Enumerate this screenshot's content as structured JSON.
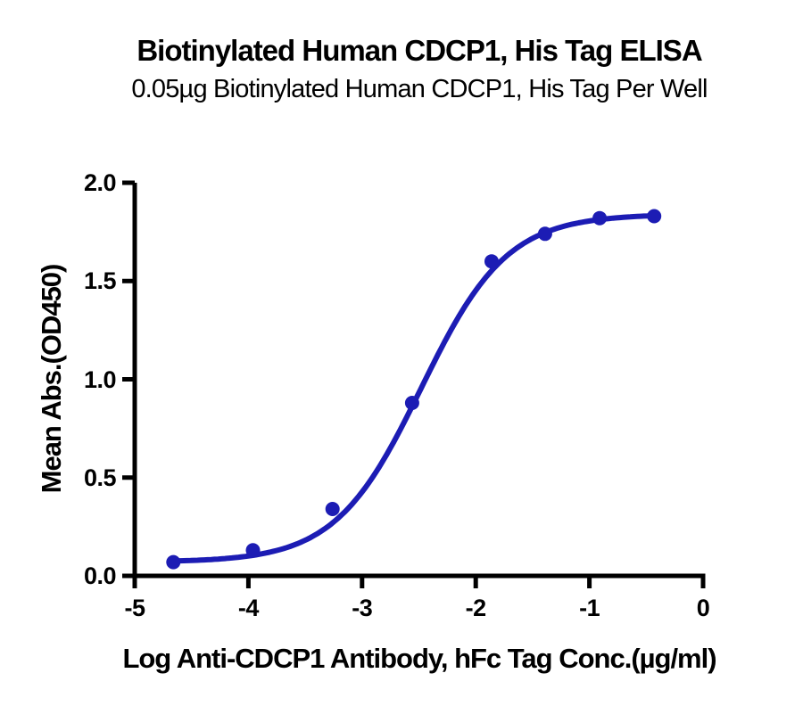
{
  "chart_data": {
    "type": "scatter",
    "title": "Biotinylated Human CDCP1, His Tag ELISA",
    "subtitle": "0.05µg Biotinylated Human CDCP1, His Tag Per Well",
    "xlabel": "Log Anti-CDCP1 Antibody, hFc Tag Conc.(µg/ml)",
    "ylabel": "Mean Abs.(OD450)",
    "xlim": [
      -5,
      0
    ],
    "ylim": [
      0,
      2
    ],
    "x_tick_labels": [
      "-5",
      "-4",
      "-3",
      "-2",
      "-1",
      "0"
    ],
    "y_tick_labels": [
      "0.0",
      "0.5",
      "1.0",
      "1.5",
      "2.0"
    ],
    "grid": false,
    "legend": false,
    "series": [
      {
        "name": "Anti-CDCP1 Antibody, hFc Tag",
        "marker": "circle",
        "color": "#1C1CB4",
        "x": [
          -4.66,
          -3.96,
          -3.26,
          -2.56,
          -1.86,
          -1.39,
          -0.91,
          -0.43
        ],
        "y": [
          0.07,
          0.13,
          0.34,
          0.88,
          1.6,
          1.74,
          1.82,
          1.83
        ]
      }
    ],
    "curve_fit": {
      "model": "4PL",
      "bottom": 0.07,
      "top": 1.84,
      "log_ec50": -2.48,
      "hill_slope": 1.15,
      "color": "#1C1CB4"
    }
  },
  "colors": {
    "accent": "#1C1CB4",
    "axis": "#000000",
    "background": "#FFFFFF",
    "text": "#000000"
  }
}
